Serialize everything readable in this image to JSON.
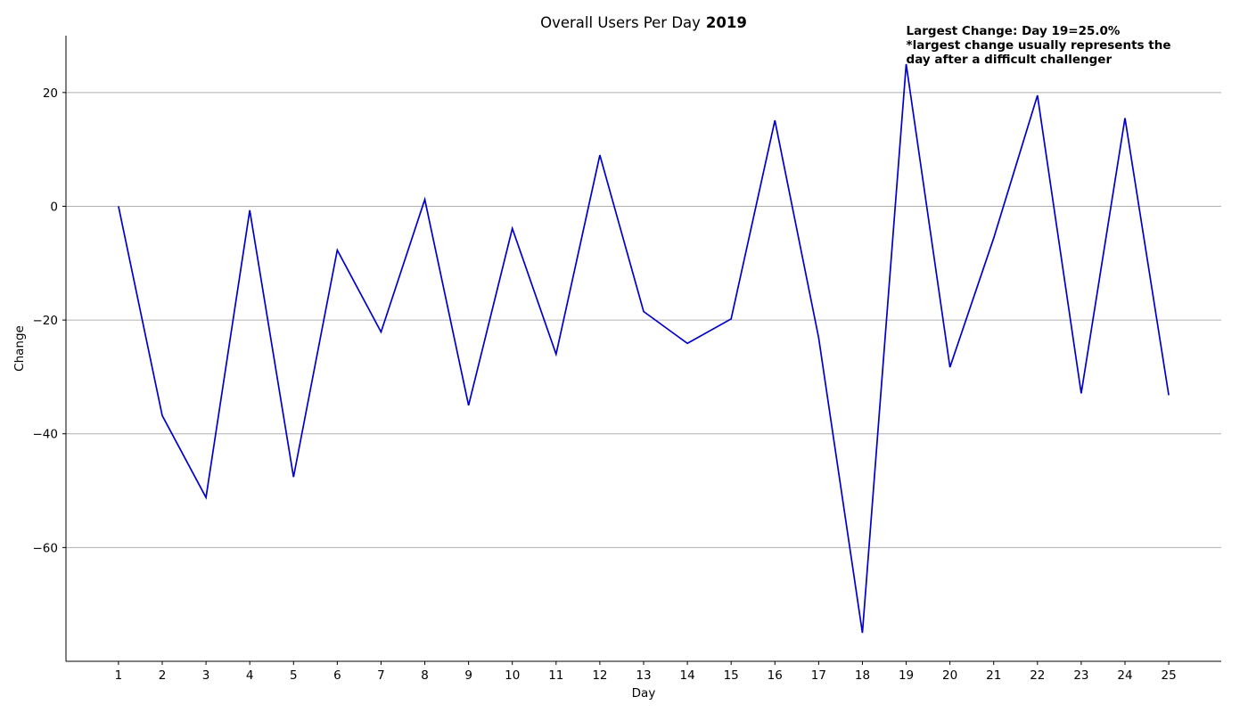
{
  "chart_data": {
    "type": "line",
    "title": "Overall Users Per Day",
    "title_year": "2019",
    "xlabel": "Day",
    "ylabel": "Change",
    "x": [
      1,
      2,
      3,
      4,
      5,
      6,
      7,
      8,
      9,
      10,
      11,
      12,
      13,
      14,
      15,
      16,
      17,
      18,
      19,
      20,
      21,
      22,
      23,
      24,
      25
    ],
    "series": [
      {
        "values": [
          0,
          -36.8,
          -51.2,
          -0.7,
          -47.6,
          -7.7,
          -22.1,
          1.2,
          -35.0,
          -3.9,
          -26.0,
          9.0,
          -18.5,
          -24.1,
          -19.8,
          15.1,
          -23.1,
          -75.0,
          25.0,
          -28.3,
          -5.6,
          19.5,
          -32.9,
          15.5,
          -33.2
        ]
      }
    ],
    "yticks": [
      -60,
      -40,
      -20,
      0,
      20
    ],
    "ylim": [
      -80,
      30
    ],
    "xlim": [
      -0.2,
      26.2
    ],
    "grid": "horizontal",
    "line_color": "#0000cc",
    "annotation": {
      "lines": [
        "Largest Change: Day 19=25.0%",
        "*largest change usually represents the",
        "day after a difficult challenger"
      ],
      "anchor_x": 19
    }
  }
}
